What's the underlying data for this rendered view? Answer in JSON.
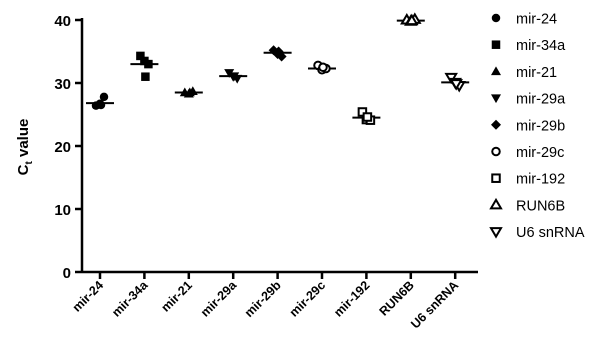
{
  "chart_data": {
    "type": "scatter",
    "ylabel_main": "C",
    "ylabel_sub": "t",
    "ylabel_rest": " value",
    "xlabel": "",
    "ylim": [
      0,
      40
    ],
    "yticks": [
      0,
      10,
      20,
      30,
      40
    ],
    "legend_position": "right",
    "grid": false,
    "categories": [
      "mir-24",
      "mir-34a",
      "mir-21",
      "mir-29a",
      "mir-29b",
      "mir-29c",
      "mir-192",
      "RUN6B",
      "U6 snRNA"
    ],
    "series": [
      {
        "name": "mir-24",
        "marker": "circle",
        "values": [
          26.4,
          26.7,
          27.8,
          26.5
        ],
        "mean": 26.8
      },
      {
        "name": "mir-34a",
        "marker": "square",
        "values": [
          34.3,
          33.5,
          33.0,
          31.0
        ],
        "mean": 33.0
      },
      {
        "name": "mir-21",
        "marker": "triangle-up",
        "values": [
          28.5,
          28.3,
          28.7,
          28.5
        ],
        "mean": 28.5
      },
      {
        "name": "mir-29a",
        "marker": "triangle-down",
        "values": [
          31.6,
          31.0,
          30.7,
          31.1
        ],
        "mean": 31.1
      },
      {
        "name": "mir-29b",
        "marker": "diamond",
        "values": [
          35.2,
          34.6,
          34.2,
          35.0
        ],
        "mean": 34.8
      },
      {
        "name": "mir-29c",
        "marker": "circle-open",
        "values": [
          32.8,
          32.1,
          32.3,
          32.5
        ],
        "mean": 32.3
      },
      {
        "name": "mir-192",
        "marker": "square-open",
        "values": [
          25.4,
          24.2,
          24.1,
          24.6
        ],
        "mean": 24.5
      },
      {
        "name": "RUN6B",
        "marker": "triangle-up-open",
        "values": [
          40.0,
          39.8,
          40.1,
          39.9
        ],
        "mean": 39.9
      },
      {
        "name": "U6 snRNA",
        "marker": "triangle-down-open",
        "values": [
          30.9,
          30.1,
          29.6,
          29.9
        ],
        "mean": 30.1
      }
    ]
  }
}
